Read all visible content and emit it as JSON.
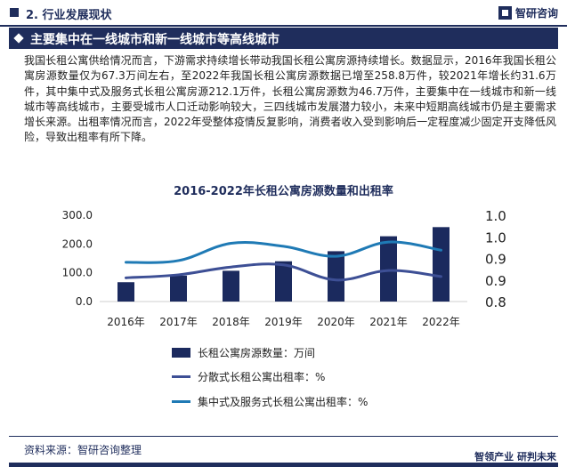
{
  "header": {
    "section": "2. 行业发展现状",
    "brand": "智研咨询"
  },
  "banner": {
    "title": "主要集中在一线城市和新一线城市等高线城市"
  },
  "body_text": "我国长租公寓供给情况而言，下游需求持续增长带动我国长租公寓房源持续增长。数据显示，2016年我国长租公寓房源数量仅为67.3万间左右，至2022年我国长租公寓房源数据已增至258.8万件，较2021年增长约31.6万件，其中集中式及服务式长租公寓房源212.1万件，长租公寓房源数为46.7万件，主要集中在一线城市和新一线城市等高线城市，主要受城市人口迁动影响较大，三四线城市发展潜力较小，未来中短期高线城市仍是主要需求增长来源。出租率情况而言，2022年受整体疫情反复影响，消费者收入受到影响后一定程度减少固定开支降低风险，导致出租率有所下降。",
  "footer": {
    "source": "资料来源：智研咨询整理",
    "brand": "智领产业  研判未来"
  },
  "colors": {
    "navy": "#1f2d5c",
    "bars": "#1b2a5e",
    "line_dispersed": "#3d4f95",
    "line_centralized": "#1f7ab5"
  },
  "chart_data": {
    "type": "bar+line",
    "title": "2016-2022年长租公寓房源数量和出租率",
    "categories": [
      "2016年",
      "2017年",
      "2018年",
      "2019年",
      "2020年",
      "2021年",
      "2022年"
    ],
    "left_axis": {
      "ylim": [
        0,
        300
      ],
      "ticks": [
        "0.0",
        "100.0",
        "200.0",
        "300.0"
      ]
    },
    "right_axis": {
      "ylim": [
        0.8,
        1.0
      ],
      "ticks": [
        "0.8",
        "0.9",
        "0.9",
        "1.0",
        "1.0"
      ]
    },
    "series": [
      {
        "name": "长租公寓房源数量：万间",
        "type": "bar",
        "axis": "left",
        "values": [
          67.3,
          90,
          107,
          140,
          175,
          227,
          258.8
        ]
      },
      {
        "name": "分散式长租公寓出租率：%",
        "type": "line",
        "axis": "right",
        "values": [
          0.855,
          0.862,
          0.88,
          0.885,
          0.85,
          0.872,
          0.858
        ]
      },
      {
        "name": "集中式及服务式长租公寓出租率：%",
        "type": "line",
        "axis": "right",
        "values": [
          0.891,
          0.895,
          0.935,
          0.928,
          0.905,
          0.938,
          0.919
        ]
      }
    ],
    "grid": false,
    "legend": "bottom"
  }
}
